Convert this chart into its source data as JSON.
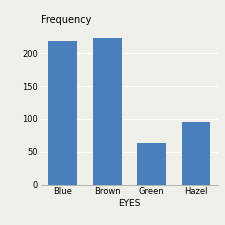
{
  "categories": [
    "Blue",
    "Brown",
    "Green",
    "Hazel"
  ],
  "values": [
    218,
    223,
    64,
    95
  ],
  "bar_color": "#4a7fbe",
  "title": "Frequency",
  "xlabel": "EYES",
  "ylim": [
    0,
    240
  ],
  "yticks": [
    0,
    50,
    100,
    150,
    200
  ],
  "title_fontsize": 7,
  "label_fontsize": 6.5,
  "tick_fontsize": 6,
  "background_color": "#f0f0eb",
  "grid_color": "#ffffff",
  "bar_width": 0.65
}
